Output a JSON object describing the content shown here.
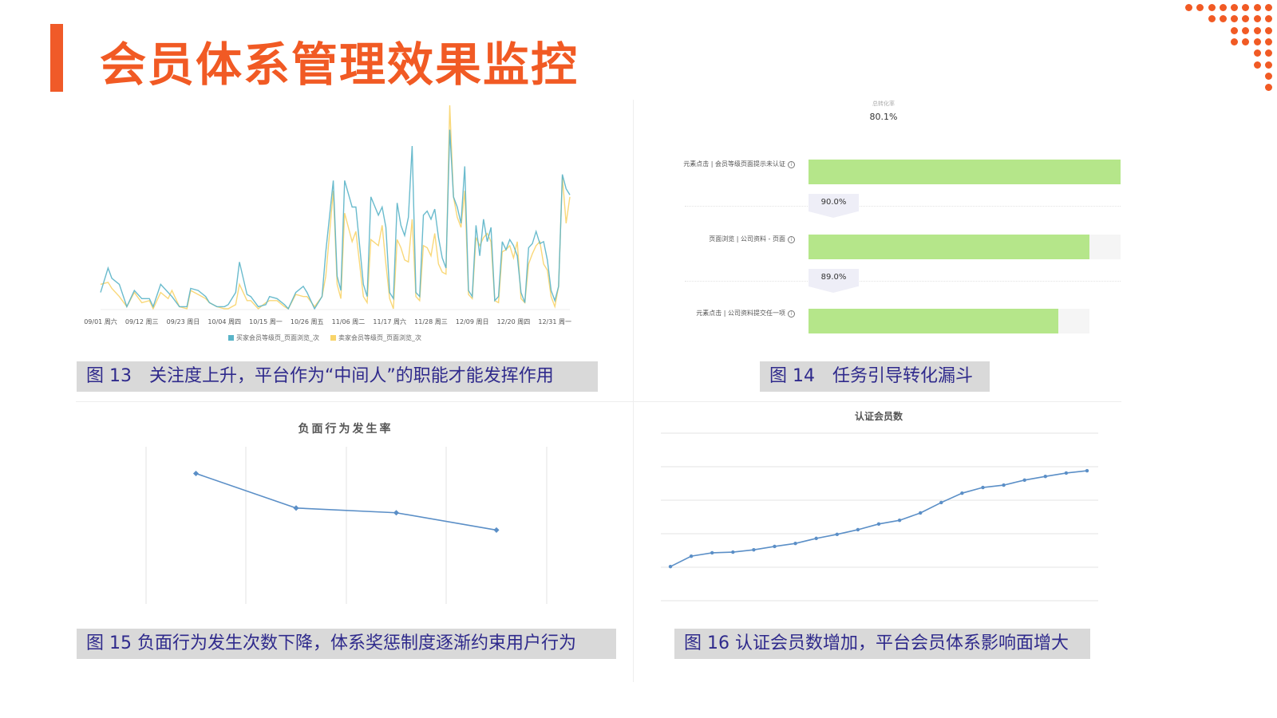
{
  "slide": {
    "title": "会员体系管理效果监控",
    "accent_color": "#f15a24"
  },
  "captions": {
    "fig13": "图 13　关注度上升，平台作为“中间人”的职能才能发挥作用",
    "fig14": "图 14　任务引导转化漏斗",
    "fig15": "图 15  负面行为发生次数下降，体系奖惩制度逐渐约束用户行为",
    "fig16": "图 16 认证会员数增加，平台会员体系影响面增大"
  },
  "chart_data": [
    {
      "id": "fig13",
      "type": "line",
      "title": "",
      "xlabel": "",
      "ylabel": "",
      "x_range": [
        "09/01",
        "01/04"
      ],
      "y_axis_visible": false,
      "grid": false,
      "legend_position": "bottom",
      "x_ticks": [
        "09/01 周六",
        "09/12 周三",
        "09/23 周日",
        "10/04 周四",
        "10/15 周一",
        "10/26 周五",
        "11/06 周二",
        "11/17 周六",
        "11/28 周三",
        "12/09 周日",
        "12/20 周四",
        "12/31 周一"
      ],
      "x": [
        "09/01",
        "09/03",
        "09/04",
        "09/06",
        "09/08",
        "09/10",
        "09/12",
        "09/14",
        "09/15",
        "09/17",
        "09/19",
        "09/20",
        "09/22",
        "09/24",
        "09/25",
        "09/27",
        "09/29",
        "09/30",
        "10/02",
        "10/04",
        "10/05",
        "10/07",
        "10/08",
        "10/10",
        "10/11",
        "10/13",
        "10/15",
        "10/16",
        "10/18",
        "10/20",
        "10/21",
        "10/23",
        "10/25",
        "10/26",
        "10/28",
        "10/30",
        "10/31",
        "11/02",
        "11/03",
        "11/04",
        "11/05",
        "11/07",
        "11/08",
        "11/10",
        "11/11",
        "11/12",
        "11/14",
        "11/15",
        "11/16",
        "11/17",
        "11/18",
        "11/19",
        "11/20",
        "11/21",
        "11/22",
        "11/23",
        "11/24",
        "11/25",
        "11/26",
        "11/27",
        "11/28",
        "11/29",
        "11/30",
        "12/01",
        "12/02",
        "12/03",
        "12/04",
        "12/05",
        "12/06",
        "12/07",
        "12/08",
        "12/09",
        "12/10",
        "12/11",
        "12/12",
        "12/13",
        "12/14",
        "12/15",
        "12/16",
        "12/17",
        "12/18",
        "12/19",
        "12/20",
        "12/21",
        "12/22",
        "12/23",
        "12/24",
        "12/25",
        "12/26",
        "12/27",
        "12/28",
        "12/29",
        "12/30",
        "12/31",
        "01/01",
        "01/02",
        "01/03",
        "01/04"
      ],
      "series": [
        {
          "name": "买家会员等级页_页面浏览_次",
          "color": "#5ab4c8",
          "values": [
            8,
            20,
            15,
            12,
            1,
            9,
            5,
            5,
            1,
            12,
            8,
            6,
            1,
            1,
            10,
            9,
            6,
            3,
            1,
            1,
            2,
            8,
            23,
            7,
            6,
            1,
            2,
            6,
            5,
            2,
            0,
            8,
            11,
            8,
            0,
            6,
            28,
            63,
            16,
            9,
            63,
            50,
            50,
            12,
            6,
            55,
            46,
            50,
            40,
            8,
            5,
            52,
            41,
            36,
            45,
            80,
            8,
            6,
            46,
            48,
            44,
            49,
            35,
            25,
            20,
            88,
            55,
            50,
            42,
            70,
            9,
            6,
            41,
            26,
            44,
            33,
            40,
            4,
            6,
            33,
            29,
            34,
            31,
            26,
            8,
            3,
            30,
            32,
            38,
            32,
            33,
            24,
            9,
            4,
            11,
            66,
            59,
            56
          ]
        },
        {
          "name": "卖家会员等级页_页面浏览_次",
          "color": "#f8d46a",
          "values": [
            12,
            13,
            10,
            6,
            1,
            8,
            3,
            4,
            0,
            8,
            5,
            9,
            1,
            0,
            9,
            7,
            5,
            3,
            1,
            0,
            0,
            2,
            12,
            4,
            4,
            0,
            3,
            4,
            4,
            1,
            0,
            7,
            6,
            6,
            1,
            6,
            16,
            58,
            12,
            5,
            47,
            33,
            38,
            6,
            3,
            34,
            31,
            41,
            22,
            5,
            0,
            34,
            30,
            24,
            23,
            44,
            6,
            4,
            31,
            30,
            26,
            37,
            22,
            18,
            17,
            100,
            55,
            45,
            40,
            58,
            7,
            5,
            35,
            31,
            35,
            37,
            33,
            4,
            3,
            28,
            29,
            31,
            25,
            33,
            5,
            3,
            22,
            27,
            31,
            33,
            22,
            19,
            6,
            1,
            11,
            65,
            42,
            55
          ]
        }
      ]
    },
    {
      "id": "fig14",
      "type": "funnel",
      "title": "总转化率",
      "total": "80.1%",
      "bar_color": "#b5e68a",
      "steps": [
        {
          "label": "元素点击 | 会员等级页面提示未认证",
          "value": 100
        },
        {
          "label": "页面浏览 | 公司资料 - 页面",
          "value": 90.0
        },
        {
          "label": "元素点击 | 公司资料提交任一项",
          "value": 80.1
        }
      ],
      "conversions": [
        "90.0%",
        "89.0%"
      ]
    },
    {
      "id": "fig15",
      "type": "line",
      "title": "负面行为发生率",
      "y_axis_visible": false,
      "ylim": [
        0,
        100
      ],
      "grid": "vertical",
      "color": "#5b8fc7",
      "values": [
        83,
        61,
        58,
        47
      ]
    },
    {
      "id": "fig16",
      "type": "line",
      "title": "认证会员数",
      "y_axis_visible": false,
      "ylim": [
        0,
        5
      ],
      "grid": "horizontal",
      "color": "#5b8fc7",
      "values": [
        1.02,
        1.33,
        1.43,
        1.45,
        1.52,
        1.62,
        1.71,
        1.86,
        1.98,
        2.12,
        2.29,
        2.4,
        2.62,
        2.93,
        3.21,
        3.38,
        3.45,
        3.6,
        3.71,
        3.81,
        3.88
      ]
    }
  ]
}
